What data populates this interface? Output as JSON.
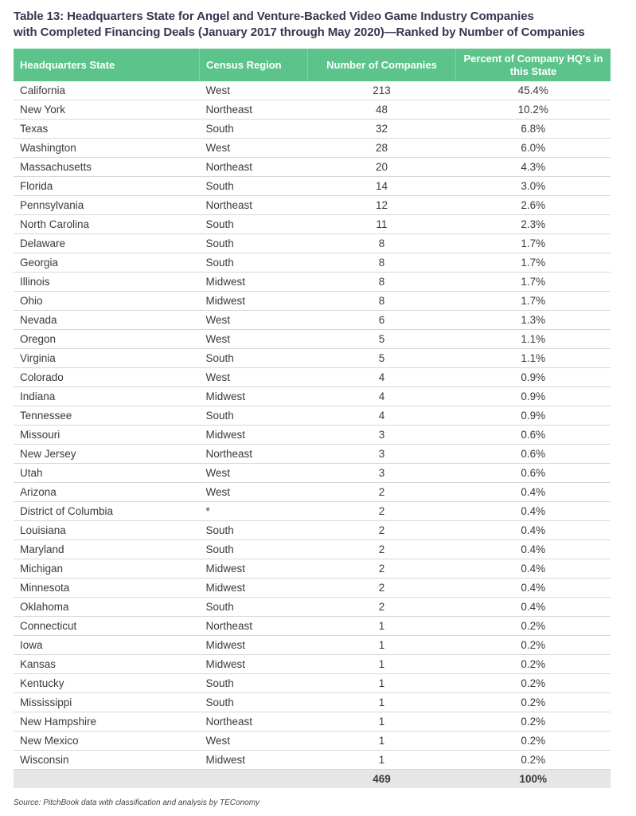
{
  "title_line1": "Table 13: Headquarters State for Angel and Venture-Backed Video Game Industry Companies",
  "title_line2": "with Completed Financing Deals (January 2017 through May 2020)—Ranked by Number of Companies",
  "columns": [
    "Headquarters State",
    "Census Region",
    "Number of Companies",
    "Percent of Company HQ's in this State"
  ],
  "rows": [
    [
      "California",
      "West",
      "213",
      "45.4%"
    ],
    [
      "New York",
      "Northeast",
      "48",
      "10.2%"
    ],
    [
      "Texas",
      "South",
      "32",
      "6.8%"
    ],
    [
      "Washington",
      "West",
      "28",
      "6.0%"
    ],
    [
      "Massachusetts",
      "Northeast",
      "20",
      "4.3%"
    ],
    [
      "Florida",
      "South",
      "14",
      "3.0%"
    ],
    [
      "Pennsylvania",
      "Northeast",
      "12",
      "2.6%"
    ],
    [
      "North Carolina",
      "South",
      "11",
      "2.3%"
    ],
    [
      "Delaware",
      "South",
      "8",
      "1.7%"
    ],
    [
      "Georgia",
      "South",
      "8",
      "1.7%"
    ],
    [
      "Illinois",
      "Midwest",
      "8",
      "1.7%"
    ],
    [
      "Ohio",
      "Midwest",
      "8",
      "1.7%"
    ],
    [
      "Nevada",
      "West",
      "6",
      "1.3%"
    ],
    [
      "Oregon",
      "West",
      "5",
      "1.1%"
    ],
    [
      "Virginia",
      "South",
      "5",
      "1.1%"
    ],
    [
      "Colorado",
      "West",
      "4",
      "0.9%"
    ],
    [
      "Indiana",
      "Midwest",
      "4",
      "0.9%"
    ],
    [
      "Tennessee",
      "South",
      "4",
      "0.9%"
    ],
    [
      "Missouri",
      "Midwest",
      "3",
      "0.6%"
    ],
    [
      "New Jersey",
      "Northeast",
      "3",
      "0.6%"
    ],
    [
      "Utah",
      "West",
      "3",
      "0.6%"
    ],
    [
      "Arizona",
      "West",
      "2",
      "0.4%"
    ],
    [
      "District of Columbia",
      "*",
      "2",
      "0.4%"
    ],
    [
      "Louisiana",
      "South",
      "2",
      "0.4%"
    ],
    [
      "Maryland",
      "South",
      "2",
      "0.4%"
    ],
    [
      "Michigan",
      "Midwest",
      "2",
      "0.4%"
    ],
    [
      "Minnesota",
      "Midwest",
      "2",
      "0.4%"
    ],
    [
      "Oklahoma",
      "South",
      "2",
      "0.4%"
    ],
    [
      "Connecticut",
      "Northeast",
      "1",
      "0.2%"
    ],
    [
      "Iowa",
      "Midwest",
      "1",
      "0.2%"
    ],
    [
      "Kansas",
      "Midwest",
      "1",
      "0.2%"
    ],
    [
      "Kentucky",
      "South",
      "1",
      "0.2%"
    ],
    [
      "Mississippi",
      "South",
      "1",
      "0.2%"
    ],
    [
      "New Hampshire",
      "Northeast",
      "1",
      "0.2%"
    ],
    [
      "New Mexico",
      "West",
      "1",
      "0.2%"
    ],
    [
      "Wisconsin",
      "Midwest",
      "1",
      "0.2%"
    ]
  ],
  "total": {
    "count": "469",
    "percent": "100%"
  },
  "source": "Source: PitchBook data with classification and analysis by TEConomy",
  "colors": {
    "header": "#5cc48a",
    "total_row": "#e6e6e6"
  }
}
